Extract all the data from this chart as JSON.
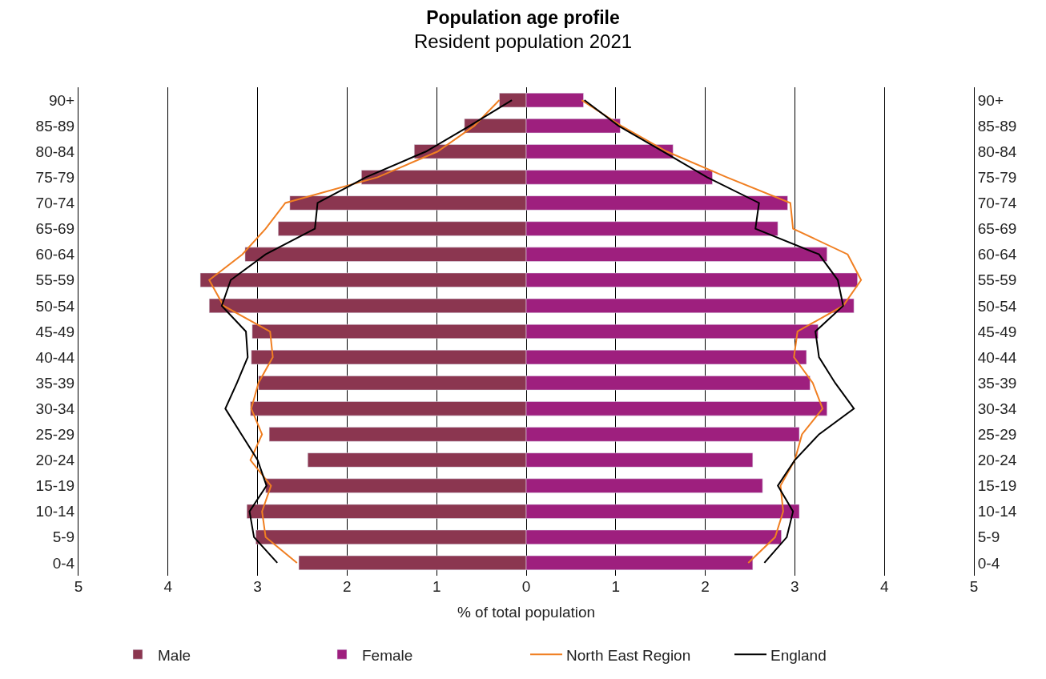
{
  "chart_data": {
    "type": "bar",
    "orientation": "horizontal",
    "stacked": true,
    "title": "Population age profile",
    "subtitle": "Resident population 2021",
    "xlabel": "% of total population",
    "categories": [
      "90+",
      "85-89",
      "80-84",
      "75-79",
      "70-74",
      "65-69",
      "60-64",
      "55-59",
      "50-54",
      "45-49",
      "40-44",
      "35-39",
      "30-34",
      "25-29",
      "20-24",
      "15-19",
      "10-14",
      "5-9",
      "0-4"
    ],
    "series": [
      {
        "name": "Male",
        "color": "#8b3650",
        "values": [
          -0.3,
          -0.69,
          -1.25,
          -1.84,
          -2.64,
          -2.77,
          -3.14,
          -3.64,
          -3.54,
          -3.06,
          -3.07,
          -2.99,
          -3.08,
          -2.87,
          -2.44,
          -2.91,
          -3.12,
          -3.02,
          -2.54
        ]
      },
      {
        "name": "Female",
        "color": "#9e1f7e",
        "values": [
          0.64,
          1.05,
          1.64,
          2.08,
          2.92,
          2.81,
          3.36,
          3.7,
          3.66,
          3.26,
          3.13,
          3.17,
          3.36,
          3.05,
          2.53,
          2.64,
          3.05,
          2.85,
          2.53
        ]
      },
      {
        "name": "North East Region",
        "type": "line",
        "color": "#f07f22",
        "values": [
          -0.3,
          -0.58,
          -0.99,
          -1.66,
          -2.69,
          -2.91,
          -3.17,
          -3.54,
          -3.38,
          -2.86,
          -2.83,
          -2.99,
          -3.07,
          -2.95,
          -3.08,
          -2.85,
          -2.95,
          -2.91,
          -2.56
        ]
      },
      {
        "type": "line",
        "color": "#f07f22",
        "values": [
          0.62,
          1.06,
          1.57,
          2.24,
          2.95,
          2.98,
          3.59,
          3.74,
          3.54,
          3.03,
          2.99,
          3.2,
          3.31,
          3.08,
          3.0,
          2.84,
          2.87,
          2.78,
          2.48
        ]
      },
      {
        "name": "England",
        "type": "line",
        "color": "#000000",
        "values": [
          -0.16,
          -0.63,
          -1.12,
          -1.79,
          -2.33,
          -2.36,
          -2.91,
          -3.3,
          -3.4,
          -3.13,
          -3.11,
          -3.23,
          -3.36,
          -3.18,
          -3.0,
          -2.9,
          -3.09,
          -3.04,
          -2.78
        ]
      },
      {
        "type": "line",
        "color": "#000000",
        "values": [
          0.65,
          1.03,
          1.53,
          2.02,
          2.6,
          2.56,
          3.27,
          3.48,
          3.54,
          3.23,
          3.27,
          3.45,
          3.66,
          3.27,
          3.0,
          2.81,
          2.98,
          2.91,
          2.66
        ]
      }
    ],
    "xlim": [
      -5,
      5
    ],
    "xticks": [
      {
        "value": -5,
        "label": "5"
      },
      {
        "value": -4,
        "label": "4"
      },
      {
        "value": -3,
        "label": "3"
      },
      {
        "value": -2,
        "label": "2"
      },
      {
        "value": -1,
        "label": "1"
      },
      0,
      1,
      2,
      3,
      4,
      5
    ],
    "grid": "x",
    "legend": "bottom",
    "marker": "none",
    "line_style": "solid"
  }
}
